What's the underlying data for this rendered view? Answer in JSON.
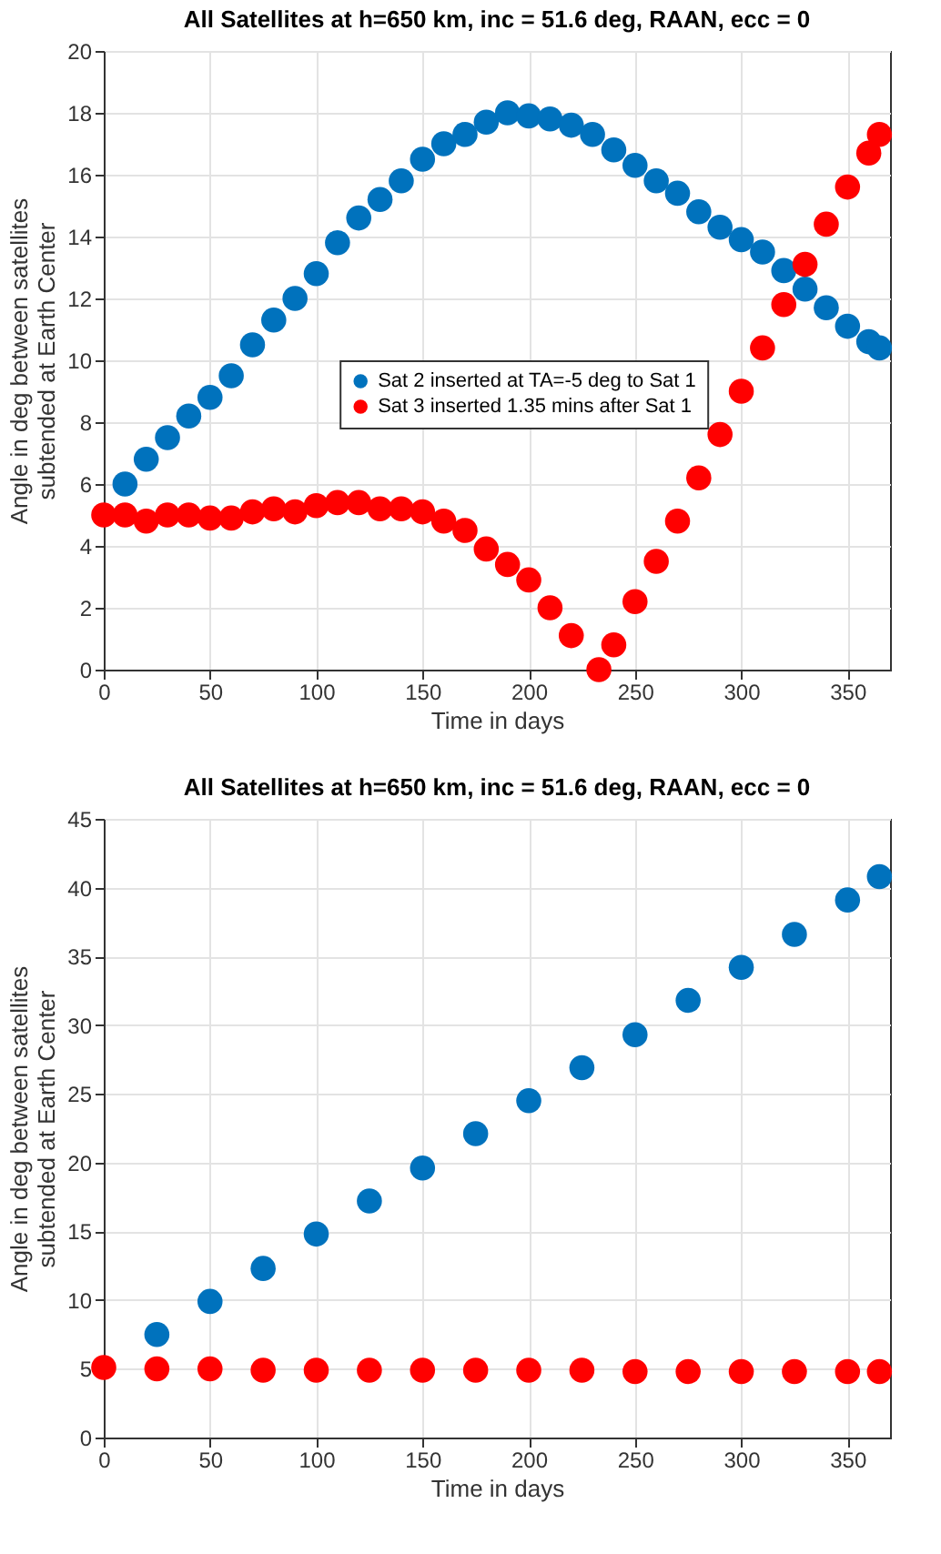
{
  "chart_data": [
    {
      "type": "scatter",
      "title": "All Satellites at h=650 km, inc = 51.6 deg, RAAN, ecc = 0",
      "xlabel": "Time in days",
      "ylabel": "Angle in deg between satellites\nsubtended at Earth Center",
      "xlim": [
        0,
        370
      ],
      "xticks": [
        0,
        50,
        100,
        150,
        200,
        250,
        300,
        350
      ],
      "ylim": [
        0,
        20
      ],
      "yticks": [
        0,
        2,
        4,
        6,
        8,
        10,
        12,
        14,
        16,
        18,
        20
      ],
      "grid": true,
      "legend": "center",
      "marker": "circle",
      "series": [
        {
          "name": "Sat 2 inserted at TA=-5 deg to Sat 1",
          "color": "#0072bd",
          "x": [
            10,
            20,
            30,
            40,
            50,
            60,
            70,
            80,
            90,
            100,
            110,
            120,
            130,
            140,
            150,
            160,
            170,
            180,
            190,
            200,
            210,
            220,
            230,
            240,
            250,
            260,
            270,
            280,
            290,
            300,
            310,
            320,
            330,
            340,
            350,
            360,
            365
          ],
          "values": [
            6,
            6.8,
            7.5,
            8.2,
            8.8,
            9.5,
            10.5,
            11.3,
            12,
            12.8,
            13.8,
            14.6,
            15.2,
            15.8,
            16.5,
            17,
            17.3,
            17.7,
            18,
            17.9,
            17.8,
            17.6,
            17.3,
            16.8,
            16.3,
            15.8,
            15.4,
            14.8,
            14.3,
            13.9,
            13.5,
            12.9,
            12.3,
            11.7,
            11.1,
            10.6,
            10.4
          ]
        },
        {
          "name": "Sat 3 inserted 1.35 mins after Sat 1",
          "color": "#ff0000",
          "x": [
            0,
            10,
            20,
            30,
            40,
            50,
            60,
            70,
            80,
            90,
            100,
            110,
            120,
            130,
            140,
            150,
            160,
            170,
            180,
            190,
            200,
            210,
            220,
            233,
            240,
            250,
            260,
            270,
            280,
            290,
            300,
            310,
            320,
            330,
            340,
            350,
            360,
            365
          ],
          "values": [
            5,
            5,
            4.8,
            5,
            5,
            4.9,
            4.9,
            5.1,
            5.2,
            5.1,
            5.3,
            5.4,
            5.4,
            5.2,
            5.2,
            5.1,
            4.8,
            4.5,
            3.9,
            3.4,
            2.9,
            2,
            1.1,
            0,
            0.8,
            2.2,
            3.5,
            4.8,
            6.2,
            7.6,
            9,
            10.4,
            11.8,
            13.1,
            14.4,
            15.6,
            16.7,
            17.3
          ]
        }
      ]
    },
    {
      "type": "scatter",
      "title": "All Satellites at h=650 km, inc = 51.6 deg, RAAN, ecc = 0",
      "xlabel": "Time in days",
      "ylabel": "Angle in deg between satellites\nsubtended at Earth Center",
      "xlim": [
        0,
        370
      ],
      "xticks": [
        0,
        50,
        100,
        150,
        200,
        250,
        300,
        350
      ],
      "ylim": [
        0,
        45
      ],
      "yticks": [
        0,
        5,
        10,
        15,
        20,
        25,
        30,
        35,
        40,
        45
      ],
      "grid": true,
      "legend": "top",
      "marker": "circle",
      "series": [
        {
          "name": "Sat 2 inserted at TA=-5 deg to Sat 1",
          "color": "#0072bd",
          "x": [
            25,
            50,
            75,
            100,
            125,
            150,
            175,
            200,
            225,
            250,
            275,
            300,
            325,
            350,
            365
          ],
          "values": [
            7.5,
            9.9,
            12.3,
            14.8,
            17.2,
            19.6,
            22.1,
            24.5,
            26.9,
            29.3,
            31.8,
            34.2,
            36.6,
            39.1,
            40.8
          ]
        },
        {
          "name": "Sat 3 inserted 1.35 mins after Sat 1",
          "color": "#ff0000",
          "x": [
            0,
            25,
            50,
            75,
            100,
            125,
            150,
            175,
            200,
            225,
            250,
            275,
            300,
            325,
            350,
            365
          ],
          "values": [
            5.1,
            5,
            5,
            4.9,
            4.9,
            4.9,
            4.9,
            4.9,
            4.9,
            4.9,
            4.8,
            4.8,
            4.8,
            4.8,
            4.8,
            4.8
          ]
        }
      ]
    }
  ]
}
